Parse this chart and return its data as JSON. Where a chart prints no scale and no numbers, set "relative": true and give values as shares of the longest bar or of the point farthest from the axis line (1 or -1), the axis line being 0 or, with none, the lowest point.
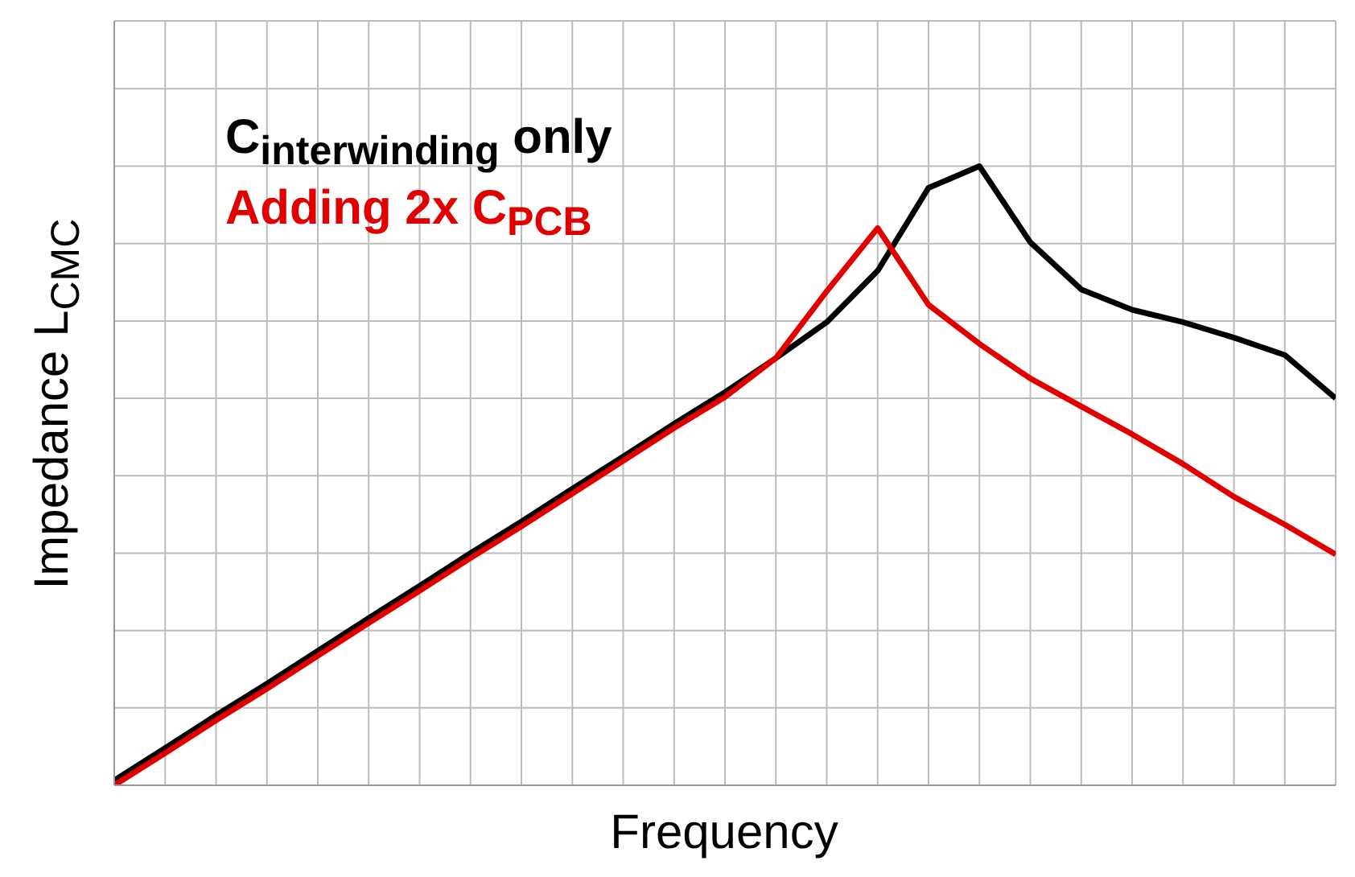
{
  "chart_data": {
    "type": "line",
    "relative": true,
    "xlabel": "Frequency",
    "ylabel": "Impedance L$_{CMC}$",
    "grid": true,
    "legend": "top left",
    "tick_labels": false,
    "categories": [
      null,
      null,
      null,
      null,
      null,
      null,
      null,
      null,
      null,
      null,
      null,
      null,
      null,
      null,
      null,
      null,
      null,
      null,
      null,
      null,
      null,
      null,
      null,
      null,
      null
    ],
    "series": [
      {
        "name": "C$_{interwinding}$ only",
        "color": "#000000",
        "values": [
          0.008,
          0.06,
          0.113,
          0.164,
          0.217,
          0.27,
          0.322,
          0.375,
          0.426,
          0.479,
          0.531,
          0.584,
          0.635,
          0.69,
          0.748,
          0.831,
          0.965,
          1,
          0.877,
          0.801,
          0.768,
          0.748,
          0.723,
          0.695,
          0.625
        ]
      },
      {
        "name": "Adding 2x C$_{PCB}$",
        "color": "#e00000",
        "values": [
          0,
          0.052,
          0.105,
          0.156,
          0.209,
          0.262,
          0.314,
          0.367,
          0.418,
          0.471,
          0.524,
          0.577,
          0.627,
          0.69,
          0.798,
          0.9,
          0.776,
          0.713,
          0.657,
          0.612,
          0.567,
          0.519,
          0.466,
          0.421,
          0.373
        ]
      }
    ]
  }
}
